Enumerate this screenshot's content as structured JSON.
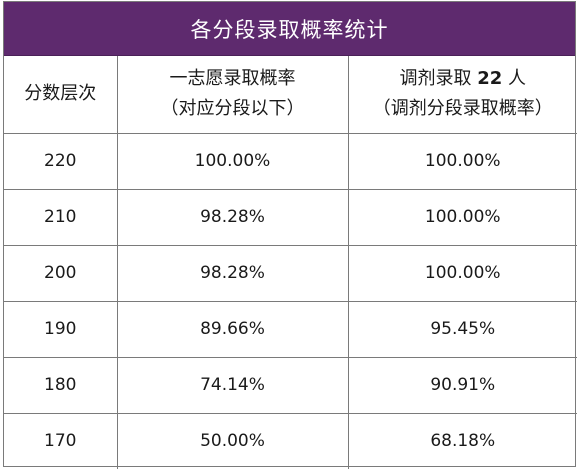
{
  "title": "各分段录取概率统计",
  "header": {
    "col1": "分数层次",
    "col2_line1": "一志愿录取概率",
    "col2_line2": "（对应分段以下）",
    "col3_prefix": "调剂录取 ",
    "col3_count": "22",
    "col3_suffix": " 人",
    "col3_line2": "（调剂分段录取概率）"
  },
  "rows": [
    {
      "score": "220",
      "first_choice": "100.00%",
      "adjustment": "100.00%"
    },
    {
      "score": "210",
      "first_choice": "98.28%",
      "adjustment": "100.00%"
    },
    {
      "score": "200",
      "first_choice": "98.28%",
      "adjustment": "100.00%"
    },
    {
      "score": "190",
      "first_choice": "89.66%",
      "adjustment": "95.45%"
    },
    {
      "score": "180",
      "first_choice": "74.14%",
      "adjustment": "90.91%"
    },
    {
      "score": "170",
      "first_choice": "50.00%",
      "adjustment": "68.18%"
    }
  ],
  "colors": {
    "title_bg": "#5e2a6e",
    "title_text": "#ffffff",
    "border": "#7a7a7a"
  }
}
